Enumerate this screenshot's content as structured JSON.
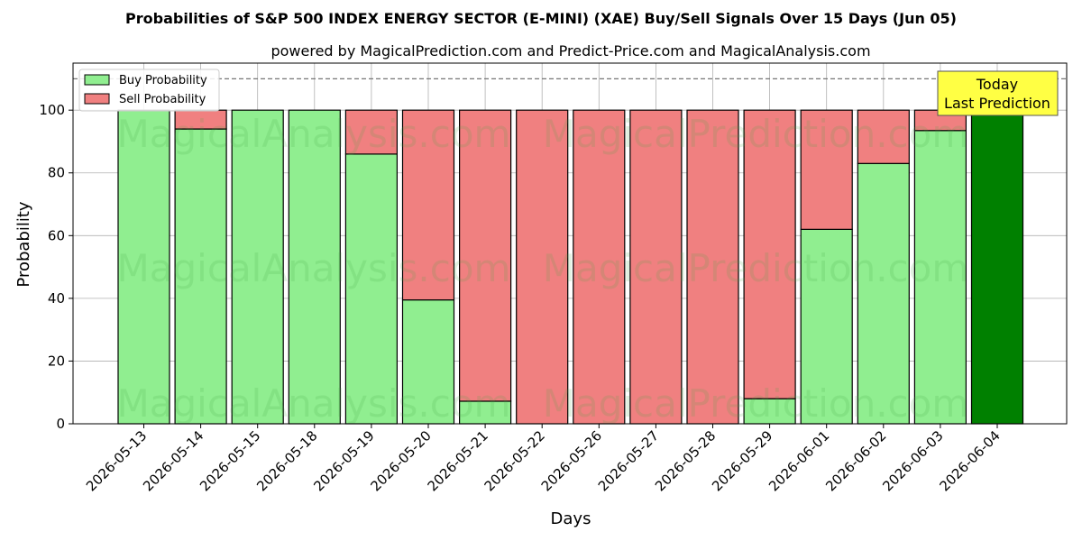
{
  "chart_data": {
    "type": "bar",
    "stacked": true,
    "title": "Probabilities of S&P 500 INDEX ENERGY SECTOR (E-MINI) (XAE) Buy/Sell Signals Over 15 Days (Jun 05)",
    "subtitle": "powered by MagicalPrediction.com and Predict-Price.com and MagicalAnalysis.com",
    "xlabel": "Days",
    "ylabel": "Probability",
    "ylim": [
      0,
      115
    ],
    "yticks": [
      0,
      20,
      40,
      60,
      80,
      100
    ],
    "reference_line": 110,
    "grid": true,
    "legend_position": "top-left",
    "categories": [
      "2026-05-13",
      "2026-05-14",
      "2026-05-15",
      "2026-05-18",
      "2026-05-19",
      "2026-05-20",
      "2026-05-21",
      "2026-05-22",
      "2026-05-26",
      "2026-05-27",
      "2026-05-28",
      "2026-05-29",
      "2026-06-01",
      "2026-06-02",
      "2026-06-03",
      "2026-06-04"
    ],
    "series": [
      {
        "name": "Buy Probability",
        "color": "#90ee90",
        "values": [
          100,
          94,
          100,
          100,
          86,
          39.5,
          7.2,
          0,
          0,
          0,
          0,
          8,
          62,
          83,
          93.5,
          100
        ]
      },
      {
        "name": "Sell Probability",
        "color": "#f08080",
        "values": [
          0,
          6,
          0,
          0,
          14,
          60.5,
          92.8,
          100,
          100,
          100,
          100,
          92,
          38,
          17,
          6.5,
          0
        ]
      }
    ],
    "highlight": {
      "index": 15,
      "color": "#008000"
    },
    "annotation": {
      "lines": [
        "Today",
        "Last Prediction"
      ],
      "color": "#ffff44"
    },
    "watermarks": [
      "MagicalAnalysis.com",
      "MagicalPrediction.com"
    ]
  }
}
